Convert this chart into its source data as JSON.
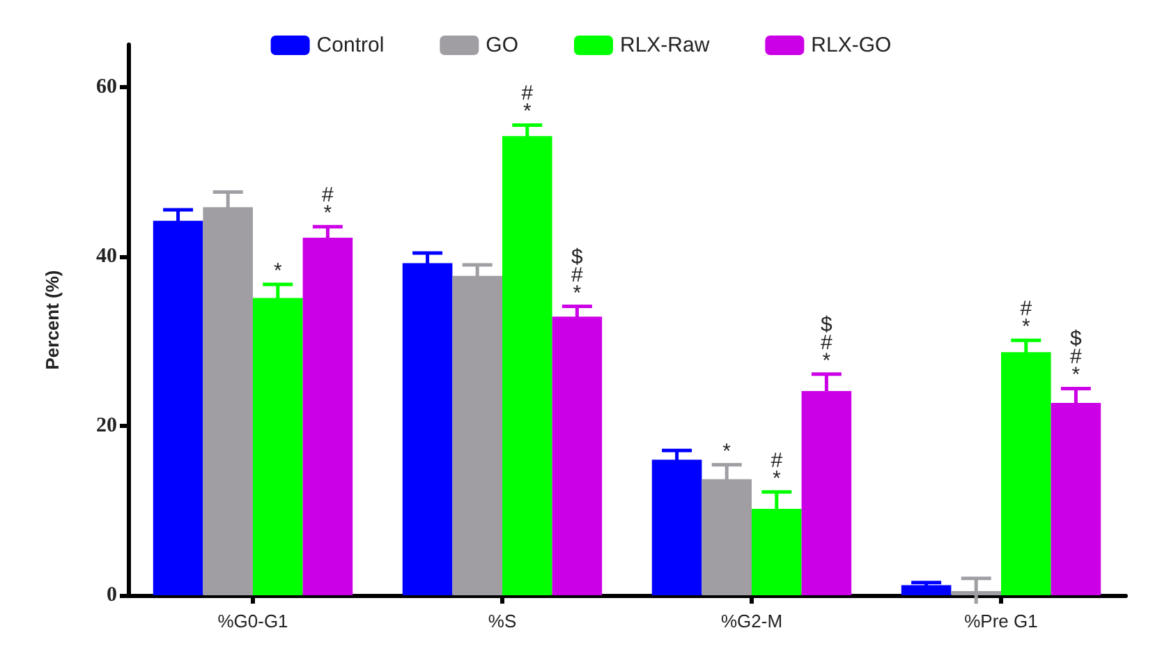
{
  "chart_data": {
    "type": "bar",
    "ylabel": "Percent (%)",
    "categories": [
      "%G0-G1",
      "%S",
      "%G2-M",
      "%Pre G1"
    ],
    "series": [
      {
        "name": "Control",
        "color": "#0000ff",
        "values": [
          44.2,
          39.2,
          16.0,
          1.2
        ],
        "errors": [
          1.3,
          1.2,
          1.1,
          0.3
        ]
      },
      {
        "name": "GO",
        "color": "#a09ea3",
        "values": [
          45.8,
          37.7,
          13.7,
          0.5
        ],
        "errors": [
          1.8,
          1.3,
          1.7,
          1.5
        ],
        "value_labels": [
          null,
          null,
          "*",
          null
        ]
      },
      {
        "name": "RLX-Raw",
        "color": "#00ff00",
        "values": [
          35.1,
          54.2,
          10.2,
          28.7
        ],
        "errors": [
          1.6,
          1.3,
          2.0,
          1.4
        ],
        "value_labels": [
          "*",
          "#\n*",
          "#\n*",
          "#\n*"
        ]
      },
      {
        "name": "RLX-GO",
        "color": "#cc00e6",
        "values": [
          42.2,
          32.9,
          24.1,
          22.7
        ],
        "errors": [
          1.3,
          1.2,
          2.0,
          1.7
        ],
        "value_labels": [
          "#\n*",
          "$\n#\n*",
          "$\n#\n*",
          "$\n#\n*"
        ]
      }
    ],
    "ylim": [
      0,
      65
    ],
    "yticks": [
      0,
      20,
      40,
      60
    ],
    "grid": false,
    "legend": "top"
  }
}
